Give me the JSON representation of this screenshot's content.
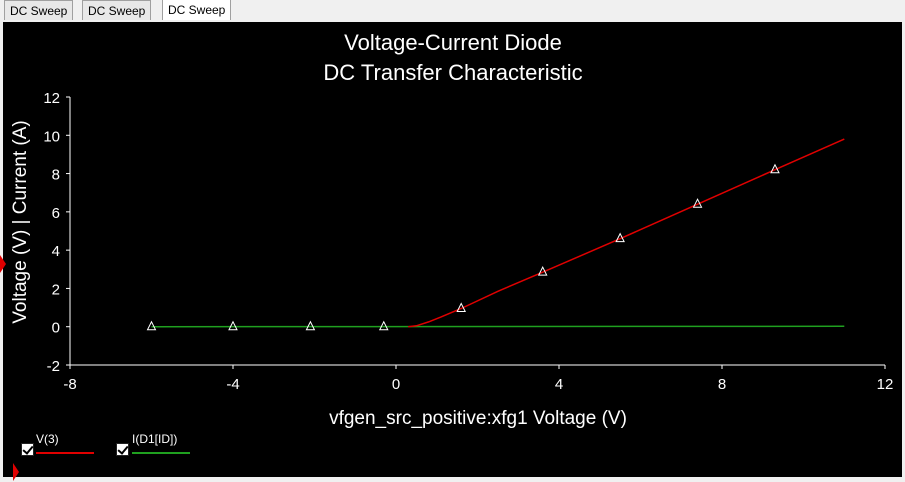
{
  "tabs": [
    {
      "label": "DC Sweep"
    },
    {
      "label": "DC Sweep"
    },
    {
      "label": "DC Sweep"
    }
  ],
  "chart_data": {
    "type": "line",
    "title": "Voltage-Current Diode",
    "subtitle": "DC Transfer Characteristic",
    "xlabel": "vfgen_src_positive:xfg1 Voltage (V)",
    "ylabel": "Voltage (V) | Current (A)",
    "xlim": [
      -8,
      12
    ],
    "ylim": [
      -2,
      12
    ],
    "xticks": [
      -8,
      -4,
      0,
      4,
      8,
      12
    ],
    "yticks": [
      -2,
      0,
      2,
      4,
      6,
      8,
      10,
      12
    ],
    "grid": false,
    "background": "#000000",
    "series": [
      {
        "name": "V(3)",
        "color": "#e00000",
        "x": [
          0.3,
          0.5,
          0.8,
          1.1,
          1.6,
          2.5,
          3.6,
          5.5,
          7.4,
          9.3,
          11.0
        ],
        "values": [
          0,
          0.05,
          0.25,
          0.5,
          0.95,
          1.85,
          2.85,
          4.6,
          6.4,
          8.2,
          9.8
        ],
        "markers_x": [
          1.6,
          3.6,
          5.5,
          7.4,
          9.3
        ],
        "markers_y": [
          0.95,
          2.85,
          4.6,
          6.4,
          8.2
        ]
      },
      {
        "name": "I(D1[ID])",
        "color": "#1fa01f",
        "x": [
          -6.0,
          11.0
        ],
        "values": [
          0,
          0.02
        ],
        "markers_x": [
          -6.0,
          -4.0,
          -2.1,
          -0.3
        ],
        "markers_y": [
          0,
          0,
          0,
          0
        ]
      }
    ],
    "legend_position": "bottom-left"
  }
}
